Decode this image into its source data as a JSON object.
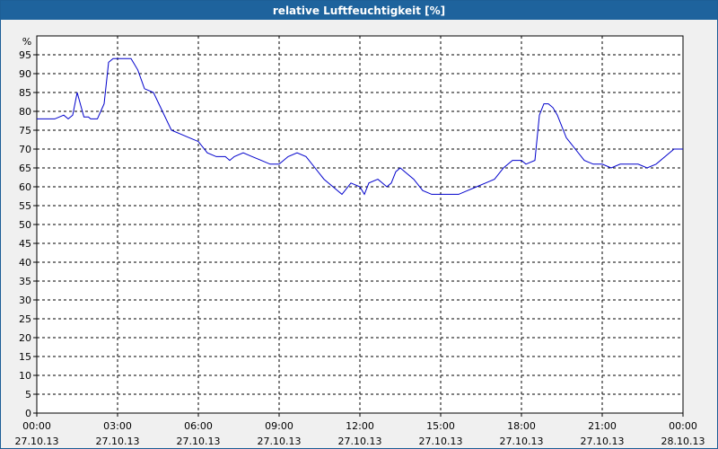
{
  "window": {
    "title": "relative Luftfeuchtigkeit [%]"
  },
  "chart_data": {
    "type": "line",
    "title": "relative Luftfeuchtigkeit [%]",
    "ylabel": "%",
    "xlabel": "",
    "ylim": [
      0,
      100
    ],
    "yticks": [
      0,
      5,
      10,
      15,
      20,
      25,
      30,
      35,
      40,
      45,
      50,
      55,
      60,
      65,
      70,
      75,
      80,
      85,
      90,
      95
    ],
    "xlim": [
      "27.10.13 00:00",
      "28.10.13 00:00"
    ],
    "xticks": [
      {
        "time": "00:00",
        "date": "27.10.13"
      },
      {
        "time": "03:00",
        "date": "27.10.13"
      },
      {
        "time": "06:00",
        "date": "27.10.13"
      },
      {
        "time": "09:00",
        "date": "27.10.13"
      },
      {
        "time": "12:00",
        "date": "27.10.13"
      },
      {
        "time": "15:00",
        "date": "27.10.13"
      },
      {
        "time": "18:00",
        "date": "27.10.13"
      },
      {
        "time": "21:00",
        "date": "27.10.13"
      },
      {
        "time": "00:00",
        "date": "28.10.13"
      }
    ],
    "grid": true,
    "line_color": "#0000cc",
    "series": [
      {
        "x": [
          "00:00",
          "00:20",
          "00:40",
          "01:00",
          "01:10",
          "01:20",
          "01:30",
          "01:45",
          "01:55",
          "02:00",
          "02:15",
          "02:30",
          "02:40",
          "02:50",
          "03:00",
          "03:10",
          "03:30",
          "03:45",
          "04:00",
          "04:20",
          "04:40",
          "05:00",
          "05:20",
          "05:40",
          "06:00",
          "06:20",
          "06:40",
          "07:00",
          "07:10",
          "07:20",
          "07:40",
          "08:00",
          "08:20",
          "08:40",
          "09:00",
          "09:20",
          "09:40",
          "10:00",
          "10:20",
          "10:40",
          "11:00",
          "11:20",
          "11:40",
          "12:00",
          "12:10",
          "12:20",
          "12:40",
          "12:50",
          "13:00",
          "13:10",
          "13:20",
          "13:30",
          "13:40",
          "14:00",
          "14:20",
          "14:40",
          "15:00",
          "15:20",
          "15:40",
          "16:00",
          "16:20",
          "16:40",
          "17:00",
          "17:20",
          "17:40",
          "18:00",
          "18:10",
          "18:20",
          "18:30",
          "18:40",
          "18:50",
          "19:00",
          "19:10",
          "19:20",
          "19:40",
          "20:00",
          "20:20",
          "20:40",
          "21:00",
          "21:20",
          "21:40",
          "22:00",
          "22:20",
          "22:40",
          "23:00",
          "23:20",
          "23:40",
          "24:00"
        ],
        "y": [
          78,
          78,
          78,
          79,
          78,
          79,
          85,
          78.5,
          78.5,
          78,
          78,
          82,
          93,
          94,
          94,
          94,
          94,
          91,
          86,
          85,
          80,
          75,
          74,
          73,
          72,
          69,
          68,
          68,
          67,
          68,
          69,
          68,
          67,
          66,
          66,
          68,
          69,
          68,
          65,
          62,
          60,
          58,
          61,
          60,
          58,
          61,
          62,
          61,
          60,
          61,
          64,
          65,
          64,
          62,
          59,
          58,
          58,
          58,
          58,
          59,
          60,
          61,
          62,
          65,
          67,
          67,
          66,
          66.5,
          67,
          79,
          82,
          82,
          81,
          79,
          73,
          70,
          67,
          66,
          66,
          65,
          66,
          66,
          66,
          65,
          66,
          68,
          70,
          70
        ]
      }
    ]
  }
}
